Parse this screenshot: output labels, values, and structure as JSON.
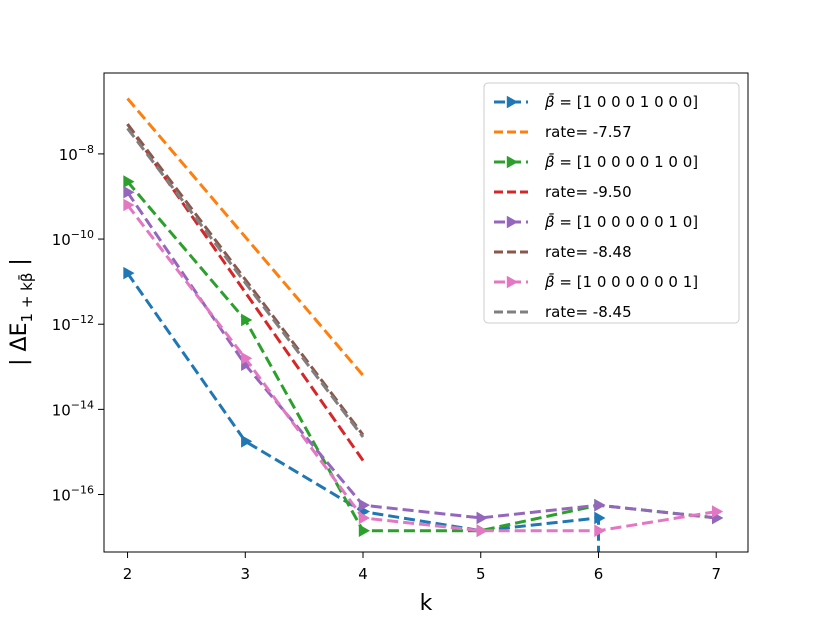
{
  "chart_data": {
    "type": "line",
    "xlabel": "k",
    "ylabel": "| ΔE",
    "ylabel_sub": "1 + kβ̄",
    "ylabel_close": " |",
    "xlim": [
      1.8,
      7.27
    ],
    "ylim_log10": [
      -17.35,
      -6.1
    ],
    "y_scale": "log",
    "x_ticks": [
      2,
      3,
      4,
      5,
      6,
      7
    ],
    "y_ticks": [
      {
        "exp": -8,
        "base": "10",
        "power": "−8"
      },
      {
        "exp": -10,
        "base": "10",
        "power": "−10"
      },
      {
        "exp": -12,
        "base": "10",
        "power": "−12"
      },
      {
        "exp": -14,
        "base": "10",
        "power": "−14"
      },
      {
        "exp": -16,
        "base": "10",
        "power": "−16"
      }
    ],
    "grid": false,
    "legend_position": "top-right",
    "series": [
      {
        "label_prefix": "β̄ =",
        "label_value": "[1 0 0 0 1 0 0 0]",
        "kind": "data",
        "color": "#1f77b4",
        "x": [
          2,
          3,
          4,
          5,
          6,
          6
        ],
        "y_log10": [
          -10.8,
          -14.75,
          -16.4,
          -16.85,
          -16.55,
          -17.35
        ]
      },
      {
        "label_prefix": "",
        "label_value": "rate= -7.57",
        "kind": "rate",
        "color": "#ff7f0e",
        "x": [
          2,
          4
        ],
        "y_log10": [
          -6.7,
          -13.2
        ]
      },
      {
        "label_prefix": "β̄ =",
        "label_value": "[1 0 0 0 0 1 0 0]",
        "kind": "data",
        "color": "#2ca02c",
        "x": [
          2,
          3,
          4,
          5,
          6,
          7
        ],
        "y_log10": [
          -8.65,
          -11.9,
          -16.85,
          -16.85,
          -16.25,
          -16.55
        ]
      },
      {
        "label_prefix": "",
        "label_value": "rate= -9.50",
        "kind": "rate",
        "color": "#d62728",
        "x": [
          2,
          4
        ],
        "y_log10": [
          -7.3,
          -15.2
        ]
      },
      {
        "label_prefix": "β̄ =",
        "label_value": "[1 0 0 0 0 0 1 0]",
        "kind": "data",
        "color": "#9467bd",
        "x": [
          2,
          3,
          4,
          5,
          6,
          7
        ],
        "y_log10": [
          -8.9,
          -12.95,
          -16.25,
          -16.55,
          -16.25,
          -16.55
        ]
      },
      {
        "label_prefix": "",
        "label_value": "rate= -8.48",
        "kind": "rate",
        "color": "#8c564b",
        "x": [
          2,
          4
        ],
        "y_log10": [
          -7.3,
          -14.6
        ]
      },
      {
        "label_prefix": "β̄ =",
        "label_value": "[1 0 0 0 0 0 0 1]",
        "kind": "data",
        "color": "#e377c2",
        "x": [
          2,
          3,
          4,
          5,
          6,
          7
        ],
        "y_log10": [
          -9.2,
          -12.8,
          -16.55,
          -16.85,
          -16.85,
          -16.4
        ]
      },
      {
        "label_prefix": "",
        "label_value": "rate= -8.45",
        "kind": "rate",
        "color": "#7f7f7f",
        "x": [
          2,
          4
        ],
        "y_log10": [
          -7.4,
          -14.65
        ]
      }
    ]
  }
}
